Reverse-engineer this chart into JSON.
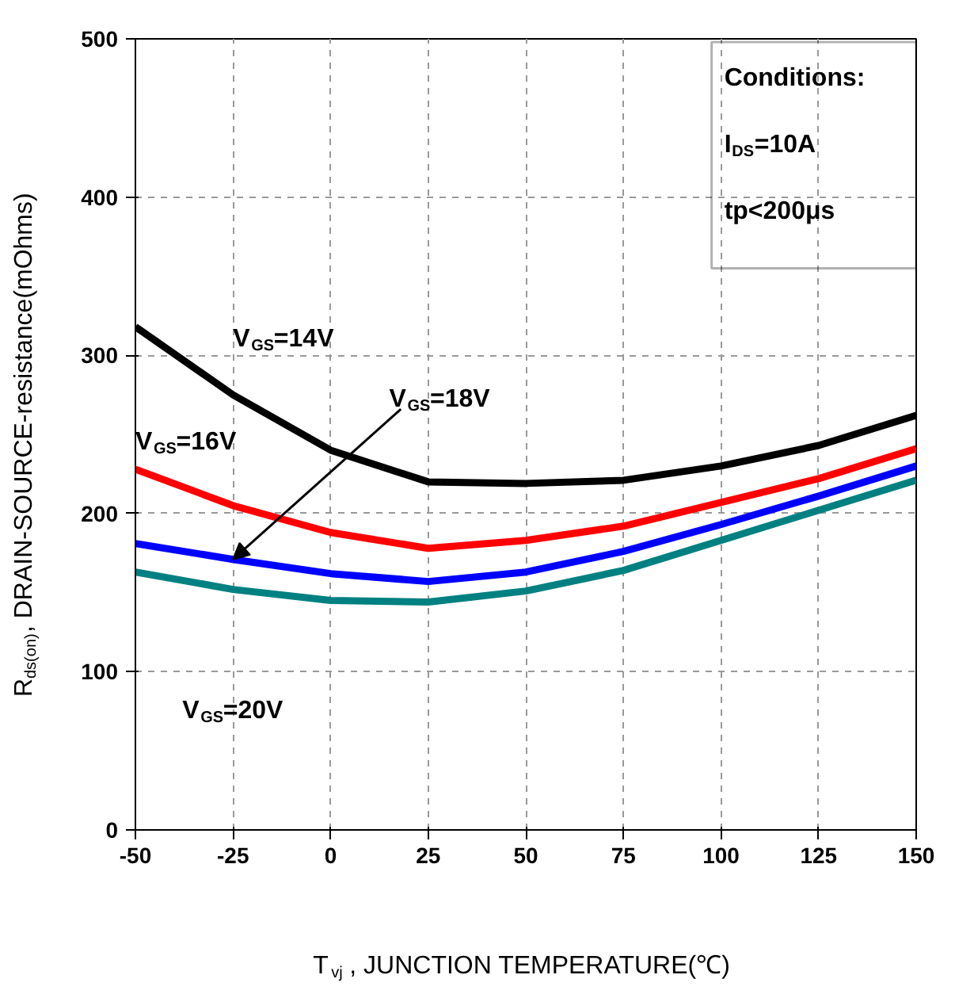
{
  "chart_data": {
    "type": "line",
    "xlabel": "T$_{vj}$, JUNCTION TEMPERATURE(℃)",
    "ylabel": "R$_{ds(on)}$, DRAIN-SOURCE-resistance(mOhms)",
    "x": [
      -50,
      -25,
      0,
      25,
      50,
      75,
      100,
      125,
      150
    ],
    "series": [
      {
        "color": "#000000",
        "values": [
          318,
          275,
          240,
          220,
          219,
          221,
          230,
          243,
          262
        ]
      },
      {
        "color": "#ff0000",
        "values": [
          228,
          205,
          188,
          178,
          183,
          192,
          207,
          222,
          241
        ]
      },
      {
        "color": "#0000ff",
        "values": [
          181,
          171,
          162,
          157,
          163,
          176,
          193,
          211,
          230
        ]
      },
      {
        "color": "#008080",
        "values": [
          163,
          152,
          145,
          144,
          151,
          164,
          183,
          202,
          221
        ]
      }
    ],
    "annotations": [
      "V$_{GS}$=14V",
      "V$_{GS}$=16V",
      {
        "text": "V$_{GS}$=18V",
        "x": -25,
        "y": 171
      },
      "V$_{GS}$=20V",
      "Conditions:",
      "I$_{DS}$=10A",
      "tp<200μs"
    ],
    "xlim": [
      -50,
      150
    ],
    "ylim": [
      0,
      500
    ],
    "xticks": [
      -50,
      -25,
      0,
      25,
      50,
      75,
      100,
      125,
      150
    ],
    "yticks": [
      0,
      100,
      200,
      300,
      400,
      500
    ],
    "grid": true,
    "line_style": "solid",
    "marker": "none"
  }
}
